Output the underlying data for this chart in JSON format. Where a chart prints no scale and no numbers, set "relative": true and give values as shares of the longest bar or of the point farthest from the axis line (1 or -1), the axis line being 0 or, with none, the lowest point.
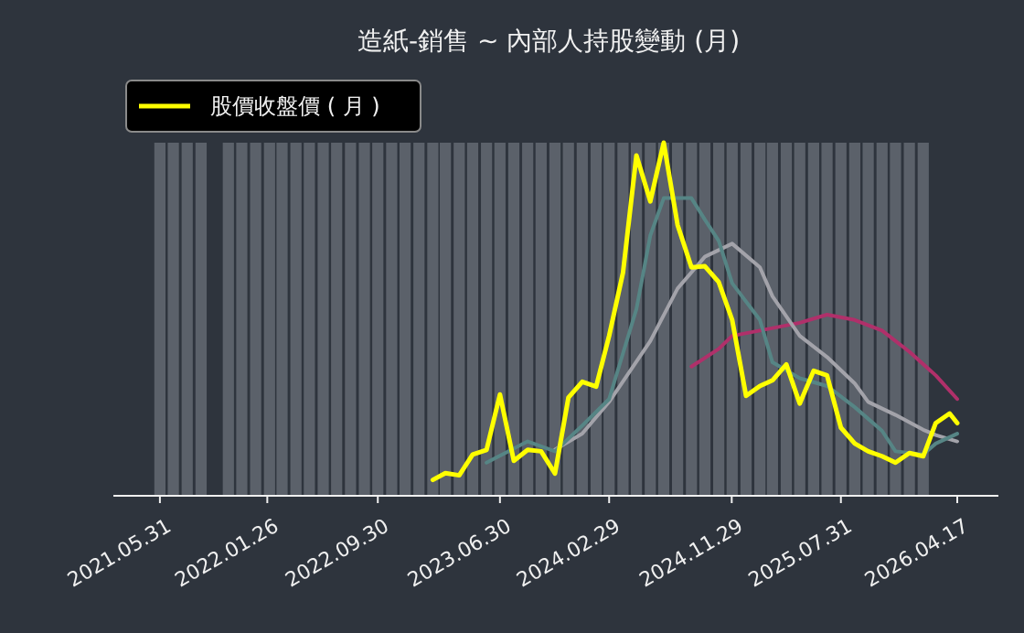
{
  "chart_data": {
    "type": "bar",
    "relative": true,
    "title": "造紙-銷售 ~ 內部人持股變動 (月)",
    "legend": "top left",
    "xlim": [
      "2021-02-16",
      "2026-07-18"
    ],
    "xticks": [
      {
        "value": "2021-05-31",
        "label": "2021.05.31"
      },
      {
        "value": "2022-01-26",
        "label": "2022.01.26"
      },
      {
        "value": "2022-09-30",
        "label": "2022.09.30"
      },
      {
        "value": "2023-06-30",
        "label": "2023.06.30"
      },
      {
        "value": "2024-02-29",
        "label": "2024.02.29"
      },
      {
        "value": "2024-11-29",
        "label": "2024.11.29"
      },
      {
        "value": "2025-07-31",
        "label": "2025.07.31"
      },
      {
        "value": "2026-04-17",
        "label": "2026.04.17"
      }
    ],
    "series": [
      {
        "color": "#5b616a",
        "x": [
          "2021-05-31",
          "2021-06-30",
          "2021-07-31",
          "2021-08-31",
          "2021-09-30",
          "2021-10-31",
          "2021-11-30",
          "2021-12-31",
          "2022-01-31",
          "2022-02-28",
          "2022-03-31",
          "2022-04-30",
          "2022-05-31",
          "2022-06-30",
          "2022-07-31",
          "2022-08-31",
          "2022-09-30",
          "2022-10-31",
          "2022-11-30",
          "2022-12-31",
          "2023-01-31",
          "2023-02-28",
          "2023-03-31",
          "2023-04-30",
          "2023-05-31",
          "2023-06-30",
          "2023-07-31",
          "2023-08-31",
          "2023-09-30",
          "2023-10-31",
          "2023-11-30",
          "2023-12-31",
          "2024-01-31",
          "2024-02-29",
          "2024-03-31",
          "2024-04-30",
          "2024-05-31",
          "2024-06-30",
          "2024-07-31",
          "2024-08-31",
          "2024-09-30",
          "2024-10-31",
          "2024-11-30",
          "2024-12-31",
          "2025-01-31",
          "2025-02-28",
          "2025-03-31",
          "2025-04-30",
          "2025-05-31",
          "2025-06-30",
          "2025-07-31",
          "2025-08-31",
          "2025-09-30",
          "2025-10-31",
          "2025-11-30",
          "2025-12-31",
          "2026-01-31"
        ],
        "values": [
          1,
          1,
          1,
          1,
          null,
          1,
          1,
          1,
          1,
          1,
          1,
          1,
          1,
          1,
          1,
          1,
          1,
          1,
          1,
          1,
          1,
          1,
          1,
          1,
          1,
          1,
          1,
          1,
          1,
          1,
          1,
          1,
          1,
          1,
          1,
          1,
          1,
          1,
          1,
          1,
          1,
          1,
          1,
          1,
          1,
          1,
          1,
          1,
          1,
          1,
          1,
          1,
          1,
          1,
          1,
          1,
          1
        ]
      },
      {
        "type": "line",
        "color": "#b0306a",
        "x": [
          "2024-08-31",
          "2024-10-31",
          "2024-11-30",
          "2025-01-31",
          "2025-04-30",
          "2025-06-30",
          "2025-08-31",
          "2025-10-31",
          "2025-12-31",
          "2026-02-28",
          "2026-04-17"
        ],
        "values": [
          0.366,
          0.416,
          0.453,
          0.468,
          0.49,
          0.513,
          0.498,
          0.468,
          0.408,
          0.341,
          0.274
        ]
      },
      {
        "type": "line",
        "color": "#a3a3aa",
        "x": [
          "2023-10-31",
          "2023-12-31",
          "2024-02-29",
          "2024-05-31",
          "2024-07-31",
          "2024-09-30",
          "2024-11-30",
          "2025-01-31",
          "2025-02-28",
          "2025-04-30",
          "2025-06-30",
          "2025-08-31",
          "2025-09-30",
          "2025-11-30",
          "2026-01-31",
          "2026-02-28",
          "2026-04-17"
        ],
        "values": [
          0.131,
          0.176,
          0.266,
          0.438,
          0.587,
          0.677,
          0.714,
          0.647,
          0.565,
          0.453,
          0.393,
          0.318,
          0.266,
          0.229,
          0.187,
          0.172,
          0.154
        ]
      },
      {
        "type": "line",
        "color": "#568585",
        "x": [
          "2023-05-31",
          "2023-08-31",
          "2023-10-31",
          "2023-12-31",
          "2024-02-29",
          "2024-04-30",
          "2024-05-31",
          "2024-06-30",
          "2024-08-31",
          "2024-09-30",
          "2024-10-31",
          "2024-11-30",
          "2025-01-31",
          "2025-02-28",
          "2025-04-30",
          "2025-06-30",
          "2025-08-31",
          "2025-10-31",
          "2025-11-30",
          "2026-01-31",
          "2026-02-28",
          "2026-04-17"
        ],
        "values": [
          0.094,
          0.154,
          0.126,
          0.199,
          0.274,
          0.529,
          0.737,
          0.843,
          0.843,
          0.782,
          0.722,
          0.602,
          0.498,
          0.378,
          0.333,
          0.311,
          0.251,
          0.184,
          0.126,
          0.117,
          0.148,
          0.176
        ]
      },
      {
        "type": "line",
        "name": "股價收盤價 ( 月 )",
        "color": "#ffff00",
        "x": [
          "2023-01-31",
          "2023-02-28",
          "2023-03-31",
          "2023-04-30",
          "2023-05-31",
          "2023-06-30",
          "2023-07-31",
          "2023-08-31",
          "2023-09-30",
          "2023-10-31",
          "2023-11-30",
          "2023-12-31",
          "2024-01-31",
          "2024-02-29",
          "2024-03-31",
          "2024-04-30",
          "2024-05-31",
          "2024-06-30",
          "2024-07-31",
          "2024-08-31",
          "2024-09-30",
          "2024-10-31",
          "2024-11-30",
          "2024-12-31",
          "2025-01-31",
          "2025-02-28",
          "2025-03-31",
          "2025-04-30",
          "2025-05-31",
          "2025-06-30",
          "2025-07-31",
          "2025-08-31",
          "2025-09-30",
          "2025-10-31",
          "2025-11-30",
          "2025-12-31",
          "2026-01-31",
          "2026-02-28",
          "2026-03-31",
          "2026-04-17"
        ],
        "values": [
          0.045,
          0.064,
          0.058,
          0.117,
          0.13,
          0.287,
          0.099,
          0.13,
          0.126,
          0.063,
          0.278,
          0.323,
          0.309,
          0.453,
          0.632,
          0.964,
          0.834,
          1.0,
          0.767,
          0.647,
          0.65,
          0.605,
          0.498,
          0.283,
          0.311,
          0.327,
          0.372,
          0.261,
          0.354,
          0.341,
          0.193,
          0.148,
          0.126,
          0.112,
          0.094,
          0.121,
          0.112,
          0.206,
          0.233,
          0.206
        ]
      }
    ]
  }
}
